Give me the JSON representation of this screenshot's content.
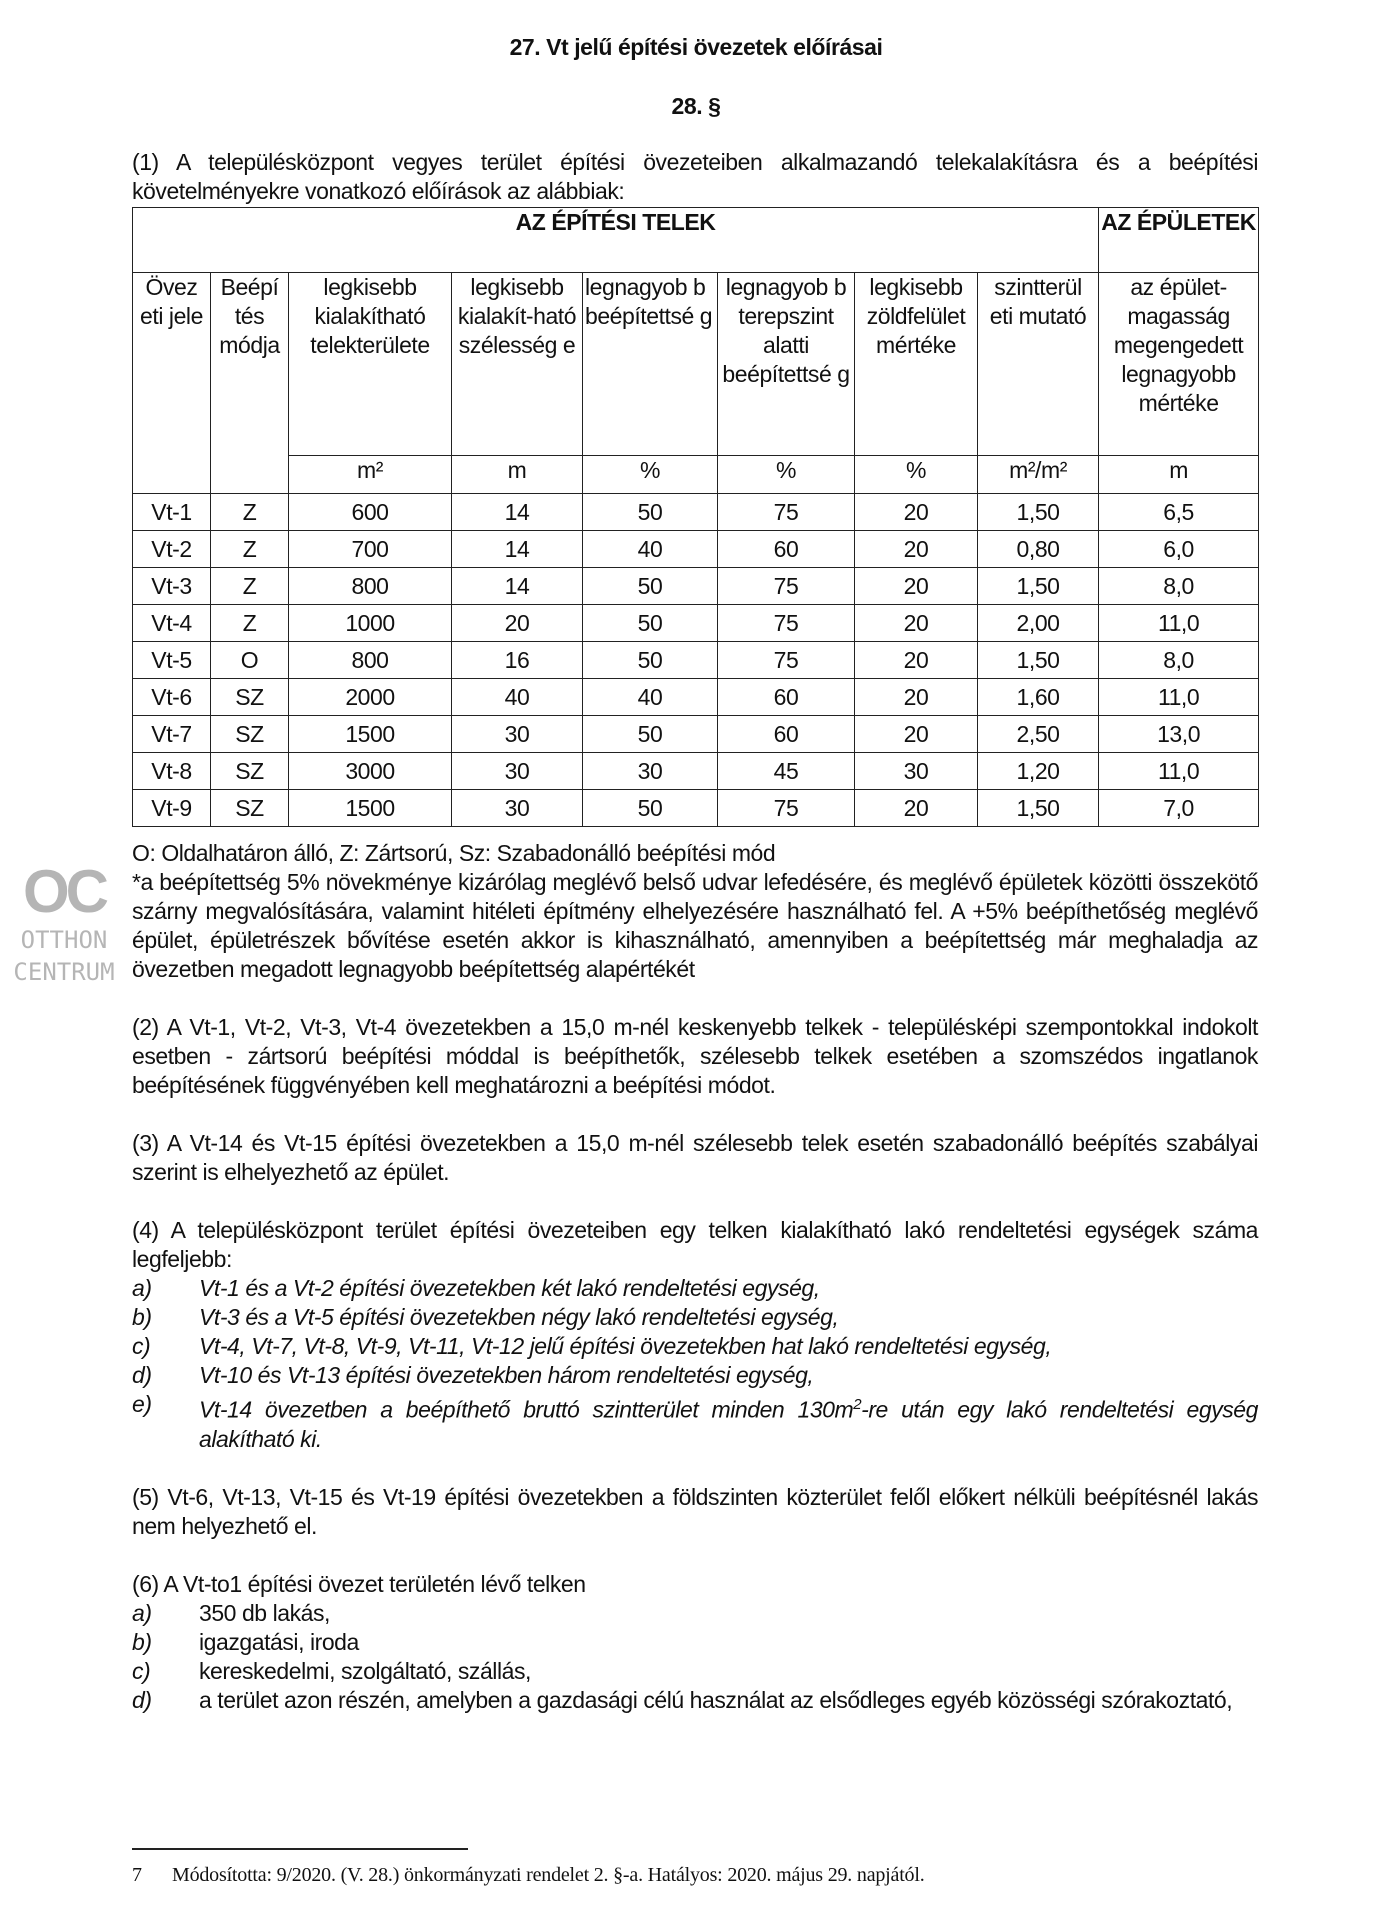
{
  "heading": "27. Vt jelű építési övezetek előírásai",
  "section": "28. §",
  "para1": "(1) A településközpont vegyes terület építési övezeteiben alkalmazandó telekalakításra és a beépítési követelményekre vonatkozó előírások az alábbiak:",
  "table": {
    "group1": "AZ ÉPÍTÉSI TELEK",
    "group2": "AZ ÉPÜLETEK",
    "columns": [
      "Övez eti jele",
      "Beépí tés módja",
      "legkisebb kialakítható telekterülete",
      "legkisebb kialakít-ható szélesség e",
      "legnagyob b beépítettsé g",
      "legnagyob b terepszint alatti beépítettsé g",
      "legkisebb zöldfelület mértéke",
      "szintterül eti mutató",
      "az épület-magasság megengedett legnagyobb mértéke"
    ],
    "units": [
      "m²",
      "m",
      "%",
      "%",
      "%",
      "m²/m²",
      "m"
    ],
    "rows": [
      [
        "Vt-1",
        "Z",
        "600",
        "14",
        "50",
        "75",
        "20",
        "1,50",
        "6,5"
      ],
      [
        "Vt-2",
        "Z",
        "700",
        "14",
        "40",
        "60",
        "20",
        "0,80",
        "6,0"
      ],
      [
        "Vt-3",
        "Z",
        "800",
        "14",
        "50",
        "75",
        "20",
        "1,50",
        "8,0"
      ],
      [
        "Vt-4",
        "Z",
        "1000",
        "20",
        "50",
        "75",
        "20",
        "2,00",
        "11,0"
      ],
      [
        "Vt-5",
        "O",
        "800",
        "16",
        "50",
        "75",
        "20",
        "1,50",
        "8,0"
      ],
      [
        "Vt-6",
        "SZ",
        "2000",
        "40",
        "40",
        "60",
        "20",
        "1,60",
        "11,0"
      ],
      [
        "Vt-7",
        "SZ",
        "1500",
        "30",
        "50",
        "60",
        "20",
        "2,50",
        "13,0"
      ],
      [
        "Vt-8",
        "SZ",
        "3000",
        "30",
        "30",
        "45",
        "30",
        "1,20",
        "11,0"
      ],
      [
        "Vt-9",
        "SZ",
        "1500",
        "30",
        "50",
        "75",
        "20",
        "1,50",
        "7,0"
      ]
    ]
  },
  "legend": "O: Oldalhatáron álló, Z: Zártsorú, Sz: Szabadonálló beépítési mód",
  "note": "*a beépítettség 5% növekménye kizárólag meglévő belső udvar lefedésére, és meglévő épületek közötti összekötő szárny megvalósítására, valamint hitéleti építmény elhelyezésére használható fel. A +5% beépíthetőség meglévő épület, épületrészek bővítése esetén akkor is kihasználható, amennyiben a beépítettség már meghaladja az övezetben megadott legnagyobb beépítettség alapértékét",
  "para2": "(2) A Vt-1, Vt-2, Vt-3, Vt-4 övezetekben a 15,0 m-nél keskenyebb telkek - településképi szempontokkal indokolt esetben - zártsorú beépítési móddal is beépíthetők, szélesebb telkek esetében a szomszédos ingatlanok beépítésének függvényében kell meghatározni a beépítési módot.",
  "para3": "(3) A Vt-14 és Vt-15 építési övezetekben a 15,0 m-nél szélesebb telek esetén szabadonálló beépítés szabályai szerint is elhelyezhető az épület.",
  "para4": {
    "intro": "(4) A településközpont terület építési övezeteiben egy telken kialakítható lakó rendeltetési egységek száma legfeljebb:",
    "items": [
      {
        "marker": "a)",
        "text": "Vt-1 és a Vt-2 építési övezetekben két lakó rendeltetési egység,"
      },
      {
        "marker": "b)",
        "text": "Vt-3 és a Vt-5 építési övezetekben négy lakó rendeltetési egység,"
      },
      {
        "marker": "c)",
        "text": "Vt-4, Vt-7, Vt-8, Vt-9, Vt-11, Vt-12 jelű építési övezetekben hat lakó rendeltetési egység,"
      },
      {
        "marker": "d)",
        "text": "Vt-10 és Vt-13 építési övezetekben három rendeltetési egység,"
      },
      {
        "marker": "e)",
        "text_before": "Vt-14 övezetben a beépíthető bruttó szintterület minden 130m",
        "sup": "2",
        "text_after": "-re után egy lakó rendeltetési egység alakítható ki."
      }
    ]
  },
  "para5": "(5) Vt-6, Vt-13, Vt-15 és Vt-19 építési övezetekben a földszinten közterület felől előkert nélküli beépítésnél lakás nem helyezhető el.",
  "para6": {
    "intro": "(6) A Vt-to1 építési övezet területén lévő telken",
    "items": [
      {
        "marker": "a)",
        "text": "350 db lakás,"
      },
      {
        "marker": "b)",
        "text": "igazgatási, iroda"
      },
      {
        "marker": "c)",
        "text": "kereskedelmi, szolgáltató, szállás,"
      },
      {
        "marker": "d)",
        "text": "a terület azon részén, amelyben a gazdasági célú használat az elsődleges egyéb közösségi szórakoztató,"
      }
    ]
  },
  "footnote": {
    "number": "7",
    "text": "Módosította: 9/2020. (V. 28.) önkormányzati rendelet 2. §-a. Hatályos: 2020. május 29. napjától."
  },
  "watermark": {
    "logo": "OC",
    "line1": "OTTHON",
    "line2": "CENTRUM"
  }
}
